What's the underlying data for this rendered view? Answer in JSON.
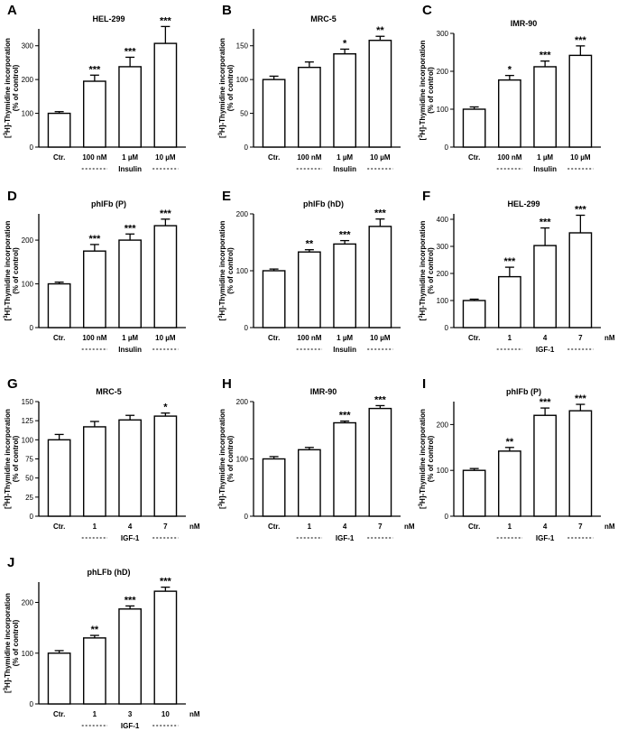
{
  "figure": {
    "y_axis_label_prefix": "[",
    "y_axis_label_sup": "3",
    "y_axis_label_mid": "H]-Thymidine incorporation",
    "y_axis_label_line2": "(% of control)"
  },
  "chart_data": [
    {
      "panel": "A",
      "type": "bar",
      "title": "HEL-299",
      "ylim": [
        0,
        350
      ],
      "yticks": [
        0,
        100,
        200,
        300
      ],
      "categories": [
        "Ctr.",
        "100 nM",
        "1 µM",
        "10 µM"
      ],
      "values": [
        100,
        195,
        238,
        307
      ],
      "errors": [
        5,
        18,
        28,
        50
      ],
      "significance": [
        "",
        "***",
        "***",
        "***"
      ],
      "unit": "",
      "group_label": "Insulin",
      "dash_count": 3
    },
    {
      "panel": "B",
      "type": "bar",
      "title": "MRC-5",
      "ylim": [
        0,
        175
      ],
      "yticks": [
        0,
        50,
        100,
        150
      ],
      "categories": [
        "Ctr.",
        "100 nM",
        "1 µM",
        "10 µM"
      ],
      "values": [
        100,
        118,
        138,
        158
      ],
      "errors": [
        5,
        8,
        7,
        6
      ],
      "significance": [
        "",
        "",
        "*",
        "**"
      ],
      "unit": "",
      "group_label": "Insulin",
      "dash_count": 3
    },
    {
      "panel": "C",
      "type": "bar",
      "title": "IMR-90",
      "ylim": [
        0,
        300
      ],
      "yticks": [
        0,
        100,
        200,
        300
      ],
      "categories": [
        "Ctr.",
        "100 nM",
        "1 µM",
        "10 µM"
      ],
      "values": [
        100,
        177,
        212,
        242
      ],
      "errors": [
        6,
        12,
        15,
        25
      ],
      "significance": [
        "",
        "*",
        "***",
        "***"
      ],
      "unit": "",
      "group_label": "Insulin",
      "dash_count": 3
    },
    {
      "panel": "D",
      "type": "bar",
      "title": "phlFb (P)",
      "ylim": [
        0,
        260
      ],
      "yticks": [
        0,
        100,
        200
      ],
      "categories": [
        "Ctr.",
        "100 nM",
        "1 µM",
        "10 µM"
      ],
      "values": [
        100,
        175,
        200,
        233
      ],
      "errors": [
        4,
        15,
        14,
        15
      ],
      "significance": [
        "",
        "***",
        "***",
        "***"
      ],
      "unit": "",
      "group_label": "Insulin",
      "dash_count": 3
    },
    {
      "panel": "E",
      "type": "bar",
      "title": "phlFb (hD)",
      "ylim": [
        0,
        200
      ],
      "yticks": [
        0,
        100,
        200
      ],
      "categories": [
        "Ctr.",
        "100 nM",
        "1 µM",
        "10 µM"
      ],
      "values": [
        100,
        133,
        147,
        178
      ],
      "errors": [
        3,
        4,
        6,
        13
      ],
      "significance": [
        "",
        "**",
        "***",
        "***"
      ],
      "unit": "",
      "group_label": "Insulin",
      "dash_count": 3
    },
    {
      "panel": "F",
      "type": "bar",
      "title": "HEL-299",
      "ylim": [
        0,
        420
      ],
      "yticks": [
        0,
        100,
        200,
        300,
        400
      ],
      "categories": [
        "Ctr.",
        "1",
        "4",
        "7"
      ],
      "values": [
        100,
        188,
        303,
        350
      ],
      "errors": [
        5,
        35,
        65,
        65
      ],
      "significance": [
        "",
        "***",
        "***",
        "***"
      ],
      "unit": "nM",
      "group_label": "IGF-1",
      "dash_count": 2
    },
    {
      "panel": "G",
      "type": "bar",
      "title": "MRC-5",
      "ylim": [
        0,
        150
      ],
      "yticks": [
        0,
        25,
        50,
        75,
        100,
        125,
        150
      ],
      "categories": [
        "Ctr.",
        "1",
        "4",
        "7"
      ],
      "values": [
        100,
        117,
        126,
        131
      ],
      "errors": [
        7,
        7,
        6,
        4
      ],
      "significance": [
        "",
        "",
        "",
        "*"
      ],
      "unit": "nM",
      "group_label": "IGF-1",
      "dash_count": 2
    },
    {
      "panel": "H",
      "type": "bar",
      "title": "IMR-90",
      "ylim": [
        0,
        200
      ],
      "yticks": [
        0,
        100,
        200
      ],
      "categories": [
        "Ctr.",
        "1",
        "4",
        "7"
      ],
      "values": [
        100,
        116,
        163,
        188
      ],
      "errors": [
        4,
        4,
        3,
        5
      ],
      "significance": [
        "",
        "",
        "***",
        "***"
      ],
      "unit": "nM",
      "group_label": "IGF-1",
      "dash_count": 2
    },
    {
      "panel": "I",
      "type": "bar",
      "title": "phlFb (P)",
      "ylim": [
        0,
        250
      ],
      "yticks": [
        0,
        100,
        200
      ],
      "categories": [
        "Ctr.",
        "1",
        "4",
        "7"
      ],
      "values": [
        100,
        142,
        220,
        230
      ],
      "errors": [
        4,
        8,
        16,
        14
      ],
      "significance": [
        "",
        "**",
        "***",
        "***"
      ],
      "unit": "nM",
      "group_label": "IGF-1",
      "dash_count": 2
    },
    {
      "panel": "J",
      "type": "bar",
      "title": "phLFb (hD)",
      "ylim": [
        0,
        240
      ],
      "yticks": [
        0,
        100,
        200
      ],
      "categories": [
        "Ctr.",
        "1",
        "3",
        "10"
      ],
      "values": [
        100,
        130,
        187,
        222
      ],
      "errors": [
        5,
        5,
        6,
        8
      ],
      "significance": [
        "",
        "**",
        "***",
        "***"
      ],
      "unit": "nM",
      "group_label": "IGF-1",
      "dash_count": 2
    }
  ]
}
